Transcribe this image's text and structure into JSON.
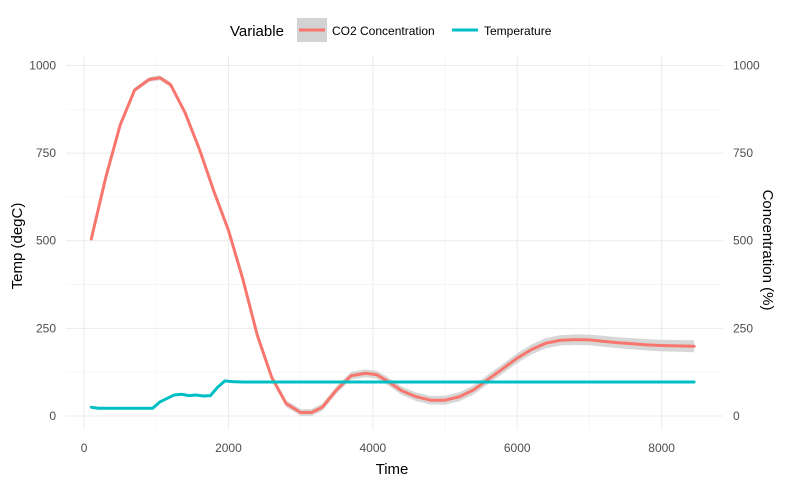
{
  "chart_data": {
    "type": "line",
    "title": "",
    "xlabel": "Time",
    "ylabel": "Temp (degC)",
    "ylabel_right": "Concentration (%)",
    "xlim": [
      -250,
      8850
    ],
    "ylim": [
      -40,
      1030
    ],
    "x_ticks": [
      0,
      2000,
      4000,
      6000,
      8000
    ],
    "y_ticks": [
      0,
      250,
      500,
      750,
      1000
    ],
    "y_ticks_right": [
      0,
      250,
      500,
      750,
      1000
    ],
    "grid": true,
    "legend": {
      "title": "Variable",
      "position": "top",
      "entries": [
        "CO2 Concentration",
        "Temperature"
      ]
    },
    "series": [
      {
        "name": "CO2 Concentration",
        "color": "#f8766d",
        "band_color": "#d3d3d3",
        "x": [
          100,
          300,
          500,
          700,
          900,
          1050,
          1200,
          1400,
          1600,
          1800,
          2000,
          2200,
          2400,
          2600,
          2800,
          3000,
          3150,
          3300,
          3500,
          3700,
          3900,
          4050,
          4200,
          4400,
          4600,
          4800,
          5000,
          5200,
          5400,
          5600,
          5800,
          6000,
          6200,
          6400,
          6600,
          6800,
          7000,
          7200,
          7400,
          7600,
          7800,
          8000,
          8200,
          8450
        ],
        "y": [
          505,
          680,
          830,
          930,
          960,
          965,
          945,
          865,
          760,
          640,
          530,
          390,
          230,
          110,
          35,
          10,
          10,
          25,
          75,
          115,
          122,
          118,
          100,
          72,
          55,
          45,
          45,
          55,
          75,
          105,
          135,
          165,
          190,
          208,
          216,
          218,
          217,
          213,
          209,
          206,
          203,
          201,
          200,
          199
        ]
      },
      {
        "name": "Temperature",
        "color": "#00bfc4",
        "x": [
          100,
          200,
          400,
          600,
          800,
          950,
          1050,
          1150,
          1250,
          1350,
          1450,
          1550,
          1650,
          1750,
          1850,
          1950,
          2050,
          2200,
          2500,
          3000,
          3500,
          4000,
          5000,
          6000,
          7000,
          8000,
          8450
        ],
        "y": [
          25,
          22,
          22,
          22,
          22,
          22,
          40,
          50,
          60,
          62,
          58,
          60,
          57,
          58,
          82,
          100,
          98,
          97,
          97,
          97,
          97,
          97,
          97,
          97,
          97,
          97,
          97
        ]
      }
    ]
  }
}
